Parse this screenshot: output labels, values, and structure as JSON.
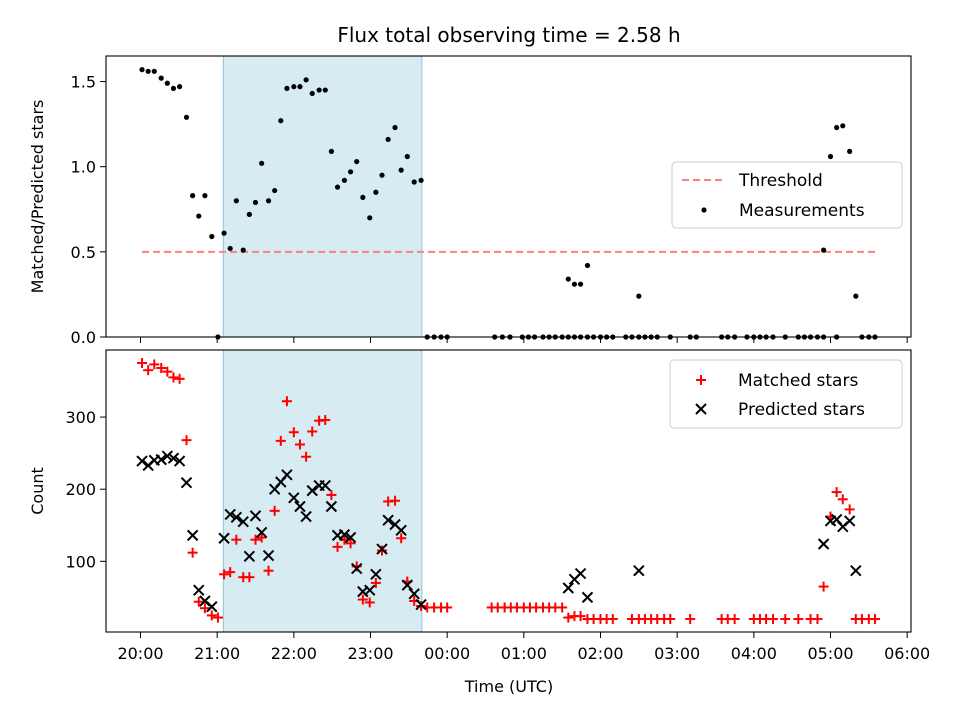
{
  "chart_data": {
    "type": "scatter",
    "title": "Flux total observing time = 2.58 h",
    "xlabel": "Time (UTC)",
    "x_tick_labels": [
      "20:00",
      "21:00",
      "22:00",
      "23:00",
      "00:00",
      "01:00",
      "02:00",
      "03:00",
      "04:00",
      "05:00",
      "06:00"
    ],
    "x_unit": "hours since 20:00 UTC",
    "xlim": [
      -0.45,
      10.05
    ],
    "shaded_interval": [
      1.08,
      3.67
    ],
    "shade_color": "#add8e6",
    "top_panel": {
      "ylabel": "Matched/Predicted stars",
      "ylim": [
        0,
        1.65
      ],
      "y_ticks": [
        0.0,
        0.5,
        1.0,
        1.5
      ],
      "y_tick_labels": [
        "0.0",
        "0.5",
        "1.0",
        "1.5"
      ],
      "legend": {
        "position": "center-right",
        "entries": [
          "Threshold",
          "Measurements"
        ]
      },
      "series": [
        {
          "name": "Threshold",
          "style": "dashed-line",
          "color": "#ff7f7f",
          "points": [
            [
              0.02,
              0.5
            ],
            [
              9.6,
              0.5
            ]
          ]
        },
        {
          "name": "Measurements",
          "style": "dot",
          "color": "#000000",
          "points": [
            [
              0.02,
              1.57
            ],
            [
              0.1,
              1.56
            ],
            [
              0.18,
              1.56
            ],
            [
              0.27,
              1.52
            ],
            [
              0.35,
              1.49
            ],
            [
              0.43,
              1.46
            ],
            [
              0.51,
              1.47
            ],
            [
              0.6,
              1.29
            ],
            [
              0.68,
              0.83
            ],
            [
              0.76,
              0.71
            ],
            [
              0.84,
              0.83
            ],
            [
              0.93,
              0.59
            ],
            [
              1.01,
              0.0
            ],
            [
              1.09,
              0.61
            ],
            [
              1.17,
              0.52
            ],
            [
              1.25,
              0.8
            ],
            [
              1.34,
              0.51
            ],
            [
              1.42,
              0.72
            ],
            [
              1.5,
              0.79
            ],
            [
              1.58,
              1.02
            ],
            [
              1.67,
              0.8
            ],
            [
              1.75,
              0.86
            ],
            [
              1.83,
              1.27
            ],
            [
              1.91,
              1.46
            ],
            [
              2.0,
              1.47
            ],
            [
              2.08,
              1.47
            ],
            [
              2.16,
              1.51
            ],
            [
              2.24,
              1.43
            ],
            [
              2.33,
              1.45
            ],
            [
              2.41,
              1.45
            ],
            [
              2.49,
              1.09
            ],
            [
              2.57,
              0.88
            ],
            [
              2.66,
              0.92
            ],
            [
              2.74,
              0.97
            ],
            [
              2.82,
              1.03
            ],
            [
              2.9,
              0.82
            ],
            [
              2.99,
              0.7
            ],
            [
              3.07,
              0.85
            ],
            [
              3.15,
              0.95
            ],
            [
              3.23,
              1.16
            ],
            [
              3.32,
              1.23
            ],
            [
              3.4,
              0.98
            ],
            [
              3.48,
              1.06
            ],
            [
              3.57,
              0.91
            ],
            [
              3.66,
              0.92
            ],
            [
              3.74,
              0.0
            ],
            [
              3.83,
              0.0
            ],
            [
              3.92,
              0.0
            ],
            [
              4.0,
              0.0
            ],
            [
              4.62,
              0.0
            ],
            [
              4.72,
              0.0
            ],
            [
              4.82,
              0.0
            ],
            [
              4.98,
              0.0
            ],
            [
              5.06,
              0.0
            ],
            [
              5.14,
              0.0
            ],
            [
              5.25,
              0.0
            ],
            [
              5.33,
              0.0
            ],
            [
              5.41,
              0.0
            ],
            [
              5.5,
              0.0
            ],
            [
              5.58,
              0.0
            ],
            [
              5.66,
              0.0
            ],
            [
              5.74,
              0.0
            ],
            [
              5.83,
              0.0
            ],
            [
              5.91,
              0.0
            ],
            [
              5.58,
              0.34
            ],
            [
              5.66,
              0.31
            ],
            [
              5.74,
              0.31
            ],
            [
              5.83,
              0.42
            ],
            [
              6.0,
              0.0
            ],
            [
              6.08,
              0.0
            ],
            [
              6.16,
              0.0
            ],
            [
              6.33,
              0.0
            ],
            [
              6.41,
              0.0
            ],
            [
              6.5,
              0.0
            ],
            [
              6.58,
              0.0
            ],
            [
              6.66,
              0.0
            ],
            [
              6.74,
              0.0
            ],
            [
              6.91,
              0.0
            ],
            [
              7.17,
              0.0
            ],
            [
              7.25,
              0.0
            ],
            [
              7.58,
              0.0
            ],
            [
              7.66,
              0.0
            ],
            [
              7.75,
              0.0
            ],
            [
              7.91,
              0.0
            ],
            [
              8.0,
              0.0
            ],
            [
              8.08,
              0.0
            ],
            [
              8.16,
              0.0
            ],
            [
              8.25,
              0.0
            ],
            [
              8.41,
              0.0
            ],
            [
              8.58,
              0.0
            ],
            [
              8.66,
              0.0
            ],
            [
              8.74,
              0.0
            ],
            [
              8.83,
              0.0
            ],
            [
              8.91,
              0.0
            ],
            [
              9.08,
              0.0
            ],
            [
              6.5,
              0.24
            ],
            [
              8.91,
              0.51
            ],
            [
              9.0,
              1.06
            ],
            [
              9.08,
              1.23
            ],
            [
              9.16,
              1.24
            ],
            [
              9.25,
              1.09
            ],
            [
              9.33,
              0.24
            ],
            [
              9.41,
              0.0
            ],
            [
              9.5,
              0.0
            ],
            [
              9.58,
              0.0
            ]
          ]
        }
      ]
    },
    "bottom_panel": {
      "ylabel": "Count",
      "ylim": [
        2,
        393
      ],
      "y_ticks": [
        100,
        200,
        300
      ],
      "y_tick_labels": [
        "100",
        "200",
        "300"
      ],
      "legend": {
        "position": "top-right",
        "entries": [
          "Matched stars",
          "Predicted stars"
        ]
      },
      "series": [
        {
          "name": "Matched stars",
          "marker": "plus",
          "color": "#ff0000",
          "points": [
            [
              0.02,
              375
            ],
            [
              0.1,
              365
            ],
            [
              0.18,
              373
            ],
            [
              0.27,
              368
            ],
            [
              0.35,
              363
            ],
            [
              0.43,
              355
            ],
            [
              0.51,
              353
            ],
            [
              0.6,
              268
            ],
            [
              0.68,
              112
            ],
            [
              0.76,
              44
            ],
            [
              0.84,
              35
            ],
            [
              0.93,
              25
            ],
            [
              1.01,
              22
            ],
            [
              1.09,
              82
            ],
            [
              1.17,
              85
            ],
            [
              1.25,
              130
            ],
            [
              1.34,
              78
            ],
            [
              1.42,
              78
            ],
            [
              1.5,
              130
            ],
            [
              1.58,
              133
            ],
            [
              1.67,
              87
            ],
            [
              1.75,
              170
            ],
            [
              1.83,
              267
            ],
            [
              1.91,
              322
            ],
            [
              2.0,
              279
            ],
            [
              2.08,
              262
            ],
            [
              2.16,
              245
            ],
            [
              2.24,
              280
            ],
            [
              2.33,
              295
            ],
            [
              2.41,
              296
            ],
            [
              2.49,
              192
            ],
            [
              2.57,
              120
            ],
            [
              2.66,
              130
            ],
            [
              2.74,
              125
            ],
            [
              2.82,
              93
            ],
            [
              2.9,
              47
            ],
            [
              2.99,
              43
            ],
            [
              3.07,
              70
            ],
            [
              3.15,
              115
            ],
            [
              3.23,
              183
            ],
            [
              3.32,
              184
            ],
            [
              3.4,
              132
            ],
            [
              3.48,
              72
            ],
            [
              3.57,
              45
            ],
            [
              3.66,
              38
            ],
            [
              3.74,
              36
            ],
            [
              3.83,
              36
            ],
            [
              3.92,
              36
            ],
            [
              4.0,
              36
            ],
            [
              4.58,
              36
            ],
            [
              4.66,
              36
            ],
            [
              4.75,
              36
            ],
            [
              4.83,
              36
            ],
            [
              4.91,
              36
            ],
            [
              5.0,
              36
            ],
            [
              5.08,
              36
            ],
            [
              5.16,
              36
            ],
            [
              5.25,
              36
            ],
            [
              5.33,
              36
            ],
            [
              5.41,
              36
            ],
            [
              5.5,
              36
            ],
            [
              5.58,
              22
            ],
            [
              5.66,
              24
            ],
            [
              5.74,
              24
            ],
            [
              5.83,
              20
            ],
            [
              5.91,
              20
            ],
            [
              6.0,
              20
            ],
            [
              6.08,
              20
            ],
            [
              6.16,
              20
            ],
            [
              6.41,
              20
            ],
            [
              6.5,
              20
            ],
            [
              6.58,
              20
            ],
            [
              6.66,
              20
            ],
            [
              6.74,
              20
            ],
            [
              6.83,
              20
            ],
            [
              6.91,
              20
            ],
            [
              7.17,
              20
            ],
            [
              7.58,
              20
            ],
            [
              7.66,
              20
            ],
            [
              7.75,
              20
            ],
            [
              8.0,
              20
            ],
            [
              8.08,
              20
            ],
            [
              8.16,
              20
            ],
            [
              8.25,
              20
            ],
            [
              8.41,
              20
            ],
            [
              8.58,
              20
            ],
            [
              8.74,
              20
            ],
            [
              8.83,
              20
            ],
            [
              8.91,
              65
            ],
            [
              9.0,
              162
            ],
            [
              9.08,
              196
            ],
            [
              9.16,
              186
            ],
            [
              9.25,
              172
            ],
            [
              9.33,
              20
            ],
            [
              9.41,
              20
            ],
            [
              9.5,
              20
            ],
            [
              9.58,
              20
            ]
          ]
        },
        {
          "name": "Predicted stars",
          "marker": "x",
          "color": "#000000",
          "points": [
            [
              0.02,
              239
            ],
            [
              0.1,
              233
            ],
            [
              0.18,
              240
            ],
            [
              0.27,
              241
            ],
            [
              0.35,
              246
            ],
            [
              0.43,
              243
            ],
            [
              0.51,
              239
            ],
            [
              0.6,
              209
            ],
            [
              0.68,
              136
            ],
            [
              0.76,
              60
            ],
            [
              0.84,
              45
            ],
            [
              0.93,
              37
            ],
            [
              1.09,
              132
            ],
            [
              1.17,
              165
            ],
            [
              1.25,
              161
            ],
            [
              1.34,
              155
            ],
            [
              1.42,
              107
            ],
            [
              1.5,
              163
            ],
            [
              1.58,
              140
            ],
            [
              1.67,
              108
            ],
            [
              1.75,
              200
            ],
            [
              1.83,
              210
            ],
            [
              1.91,
              220
            ],
            [
              2.0,
              188
            ],
            [
              2.08,
              176
            ],
            [
              2.16,
              162
            ],
            [
              2.24,
              198
            ],
            [
              2.33,
              205
            ],
            [
              2.41,
              205
            ],
            [
              2.49,
              176
            ],
            [
              2.57,
              136
            ],
            [
              2.66,
              137
            ],
            [
              2.74,
              133
            ],
            [
              2.82,
              90
            ],
            [
              2.9,
              58
            ],
            [
              2.99,
              60
            ],
            [
              3.07,
              82
            ],
            [
              3.15,
              117
            ],
            [
              3.23,
              157
            ],
            [
              3.32,
              151
            ],
            [
              3.4,
              143
            ],
            [
              3.48,
              67
            ],
            [
              3.57,
              55
            ],
            [
              3.66,
              40
            ],
            [
              5.58,
              63
            ],
            [
              5.66,
              75
            ],
            [
              5.74,
              83
            ],
            [
              5.83,
              50
            ],
            [
              6.5,
              87
            ],
            [
              8.91,
              124
            ],
            [
              9.0,
              156
            ],
            [
              9.08,
              158
            ],
            [
              9.16,
              148
            ],
            [
              9.25,
              156
            ],
            [
              9.33,
              87
            ]
          ]
        }
      ]
    }
  }
}
